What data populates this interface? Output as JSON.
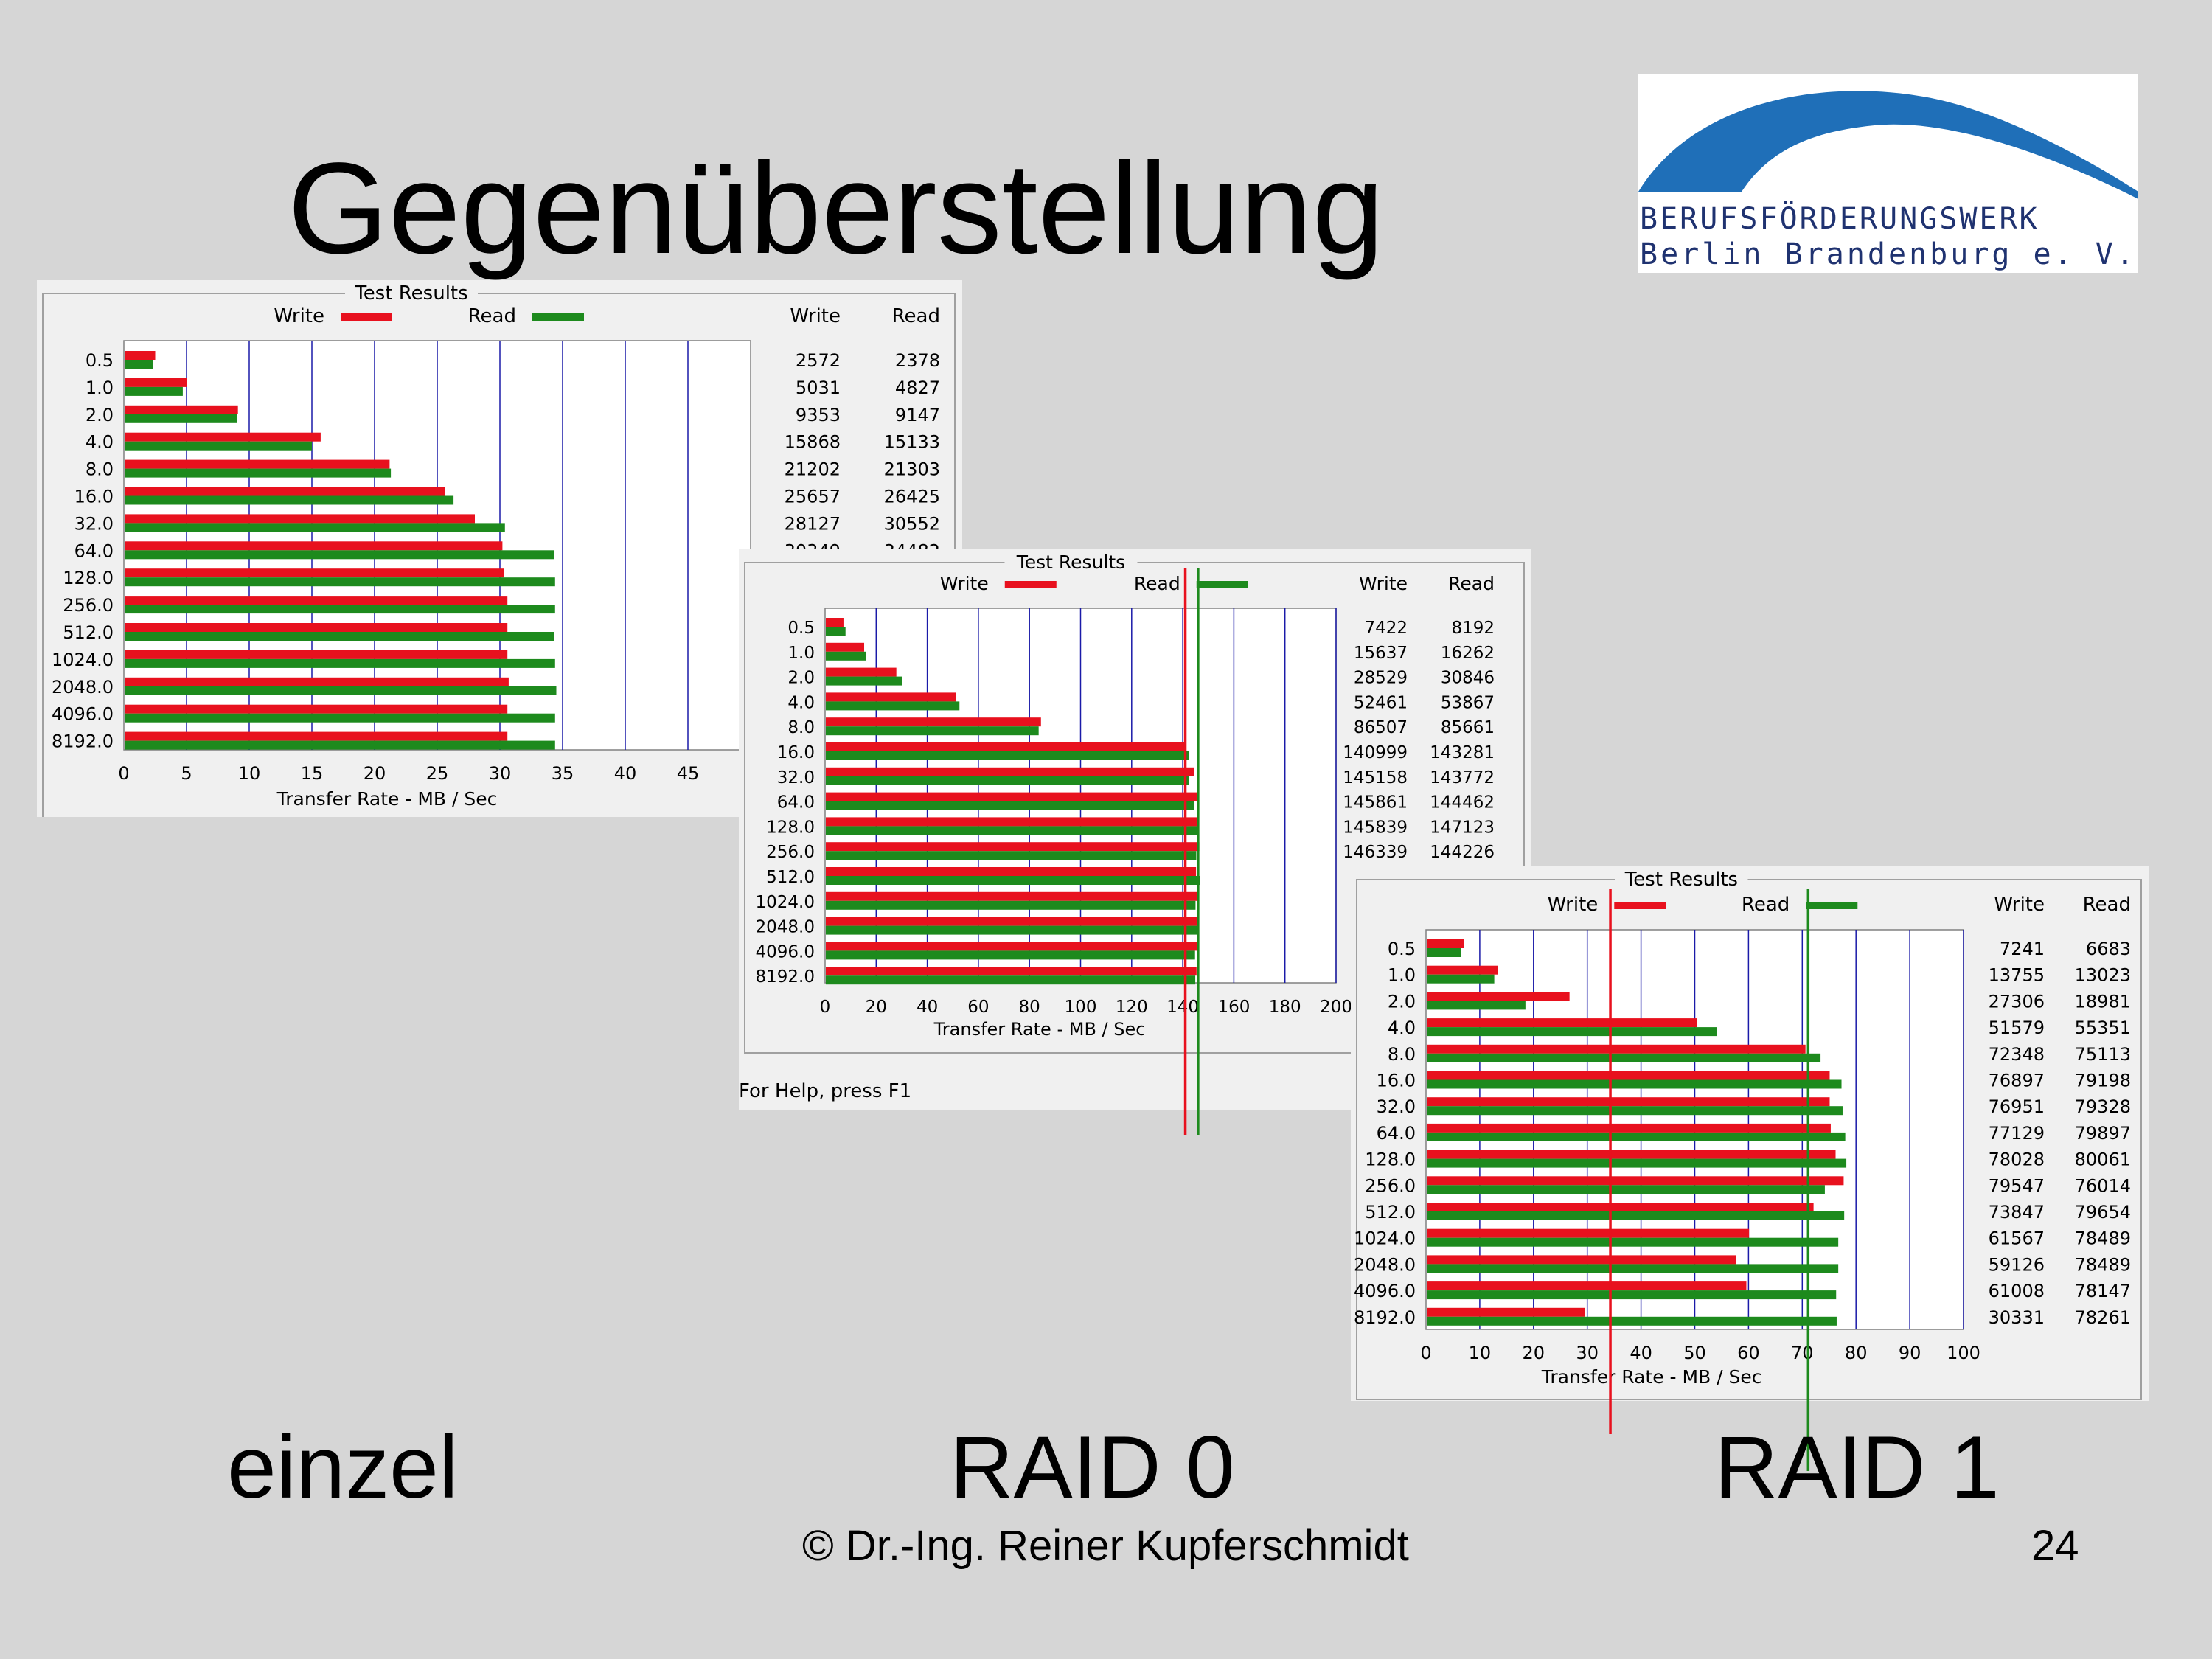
{
  "slide": {
    "title": "Gegenüberstellung",
    "logo_line1": "BERUFSFÖRDERUNGSWERK",
    "logo_line2": "Berlin Brandenburg e. V.",
    "label_einzel": "einzel",
    "label_raid0": "RAID 0",
    "label_raid1": "RAID 1",
    "copyright": "© Dr.-Ing. Reiner Kupferschmidt",
    "page_number": "24",
    "status_text": "For Help, press F1"
  },
  "colors": {
    "write": "#e8111e",
    "read": "#1d8a1d",
    "grid": "#1a1aa8",
    "slide_bg": "#d6d6d6",
    "logo_blue": "#1f6fb8"
  },
  "chart_data": [
    {
      "type": "bar",
      "title": "Test Results",
      "xlabel": "Transfer Rate - MB / Sec",
      "xlim": [
        0,
        50
      ],
      "xticks": [
        0,
        5,
        10,
        15,
        20,
        25,
        30,
        35,
        40,
        45
      ],
      "legend": [
        "Write",
        "Read"
      ],
      "col_headers": [
        "Write",
        "Read"
      ],
      "categories": [
        "0.5",
        "1.0",
        "2.0",
        "4.0",
        "8.0",
        "16.0",
        "32.0",
        "64.0",
        "128.0",
        "256.0",
        "512.0",
        "1024.0",
        "2048.0",
        "4096.0",
        "8192.0"
      ],
      "series": [
        {
          "name": "Write",
          "values": [
            2.5,
            5.0,
            9.1,
            15.7,
            21.2,
            25.6,
            28.0,
            30.2,
            30.3,
            30.6,
            30.6,
            30.6,
            30.7,
            30.6,
            30.6
          ]
        },
        {
          "name": "Read",
          "values": [
            2.3,
            4.7,
            9.0,
            15.0,
            21.3,
            26.3,
            30.4,
            34.3,
            34.4,
            34.4,
            34.3,
            34.4,
            34.5,
            34.4,
            34.4
          ]
        }
      ],
      "table_write": [
        "2572",
        "5031",
        "9353",
        "15868",
        "21202",
        "25657",
        "28127",
        "30349"
      ],
      "table_read": [
        "2378",
        "4827",
        "9147",
        "15133",
        "21303",
        "26425",
        "30552",
        "34482"
      ]
    },
    {
      "type": "bar",
      "title": "Test Results",
      "xlabel": "Transfer Rate - MB / Sec",
      "xlim": [
        0,
        200
      ],
      "xticks": [
        0,
        20,
        40,
        60,
        80,
        100,
        120,
        140,
        160,
        180,
        200
      ],
      "legend": [
        "Write",
        "Read"
      ],
      "col_headers": [
        "Write",
        "Read"
      ],
      "categories": [
        "0.5",
        "1.0",
        "2.0",
        "4.0",
        "8.0",
        "16.0",
        "32.0",
        "64.0",
        "128.0",
        "256.0",
        "512.0",
        "1024.0",
        "2048.0",
        "4096.0",
        "8192.0"
      ],
      "series": [
        {
          "name": "Write",
          "values": [
            7.2,
            15.3,
            27.9,
            51.2,
            84.5,
            141,
            144.5,
            145.5,
            145.8,
            146.5,
            145.2,
            145.5,
            146.0,
            145.5,
            145.4
          ]
        },
        {
          "name": "Read",
          "values": [
            8.0,
            15.9,
            30.1,
            52.6,
            83.6,
            142.5,
            142.5,
            144.5,
            145.5,
            145.3,
            146.8,
            145.0,
            145.8,
            144.8,
            144.9
          ]
        }
      ],
      "table_write": [
        "7422",
        "15637",
        "28529",
        "52461",
        "86507",
        "140999",
        "145158",
        "145861",
        "145839",
        "146339"
      ],
      "table_read": [
        "8192",
        "16262",
        "30846",
        "53867",
        "85661",
        "143281",
        "143772",
        "144462",
        "147123",
        "144226"
      ],
      "marker_lines": {
        "write": 141,
        "read": 146
      }
    },
    {
      "type": "bar",
      "title": "Test Results",
      "xlabel": "Transfer Rate - MB / Sec",
      "xlim": [
        0,
        100
      ],
      "xticks": [
        0,
        10,
        20,
        30,
        40,
        50,
        60,
        70,
        80,
        90,
        100
      ],
      "legend": [
        "Write",
        "Read"
      ],
      "col_headers": [
        "Write",
        "Read"
      ],
      "categories": [
        "0.5",
        "1.0",
        "2.0",
        "4.0",
        "8.0",
        "16.0",
        "32.0",
        "64.0",
        "128.0",
        "256.0",
        "512.0",
        "1024.0",
        "2048.0",
        "4096.0",
        "8192.0"
      ],
      "series": [
        {
          "name": "Write",
          "values": [
            7.1,
            13.4,
            26.7,
            50.4,
            70.6,
            75.1,
            75.1,
            75.3,
            76.2,
            77.7,
            72.1,
            60.1,
            57.7,
            59.6,
            29.6
          ]
        },
        {
          "name": "Read",
          "values": [
            6.5,
            12.7,
            18.5,
            54.1,
            73.4,
            77.3,
            77.5,
            78.0,
            78.2,
            74.2,
            77.8,
            76.7,
            76.7,
            76.3,
            76.4
          ]
        }
      ],
      "table_write": [
        "7241",
        "13755",
        "27306",
        "51579",
        "72348",
        "76897",
        "76951",
        "77129",
        "78028",
        "79547",
        "73847",
        "61567",
        "59126",
        "61008",
        "30331"
      ],
      "table_read": [
        "6683",
        "13023",
        "18981",
        "55351",
        "75113",
        "79198",
        "79328",
        "79897",
        "80061",
        "76014",
        "79654",
        "78489",
        "78489",
        "78147",
        "78261"
      ],
      "marker_lines": {
        "write": 34.3,
        "read": 71.1
      }
    }
  ]
}
